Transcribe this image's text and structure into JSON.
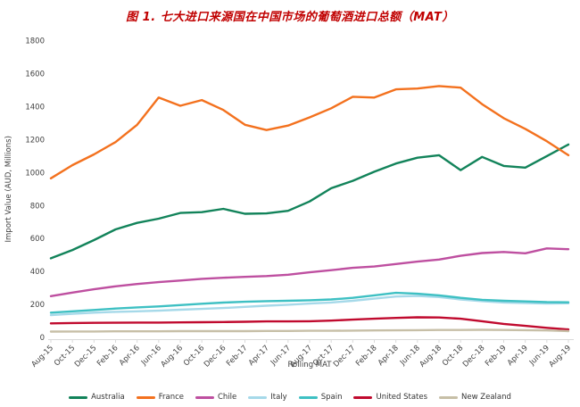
{
  "title": "图 1. 七大进口来源国在中国市场的葡萄酒进口总额（MAT）",
  "colors": {
    "title": "#C00000",
    "axis_text": "#404040",
    "axis_line": "#D9D9D9",
    "background": "#FFFFFF"
  },
  "chart_data": {
    "type": "line",
    "title": "图 1. 七大进口来源国在中国市场的葡萄酒进口总额（MAT）",
    "xlabel": "Rolling MAT",
    "ylabel": "Import Value (AUD, Millions)",
    "ylim": [
      0,
      1800
    ],
    "y_ticks": [
      0,
      200,
      400,
      600,
      800,
      1000,
      1200,
      1400,
      1600,
      1800
    ],
    "grid": false,
    "legend_position": "bottom",
    "x_labels": [
      "Aug-15",
      "Oct-15",
      "Dec-15",
      "Feb-16",
      "Apr-16",
      "Jun-16",
      "Aug-16",
      "Oct-16",
      "Dec-16",
      "Feb-17",
      "Apr-17",
      "Jun-17",
      "Aug-17",
      "Oct-17",
      "Dec-17",
      "Feb-18",
      "Apr-18",
      "Jun-18",
      "Aug-18",
      "Oct-18",
      "Dec-18",
      "Feb-19",
      "Apr-19",
      "Jun-19",
      "Aug-19"
    ],
    "series": [
      {
        "name": "Australia",
        "color": "#12835A",
        "values": [
          480,
          530,
          590,
          655,
          695,
          720,
          755,
          760,
          780,
          750,
          752,
          768,
          825,
          905,
          950,
          1005,
          1055,
          1090,
          1105,
          1015,
          1095,
          1040,
          1030,
          1100,
          1170
        ]
      },
      {
        "name": "France",
        "color": "#F3711E",
        "values": [
          965,
          1045,
          1110,
          1185,
          1290,
          1455,
          1405,
          1440,
          1380,
          1290,
          1258,
          1285,
          1335,
          1390,
          1460,
          1455,
          1505,
          1510,
          1525,
          1515,
          1415,
          1330,
          1265,
          1190,
          1105
        ]
      },
      {
        "name": "Chile",
        "color": "#BE4FA0",
        "values": [
          250,
          272,
          292,
          310,
          324,
          335,
          345,
          355,
          362,
          367,
          372,
          380,
          395,
          408,
          422,
          430,
          445,
          460,
          472,
          495,
          512,
          518,
          510,
          540,
          535
        ]
      },
      {
        "name": "Italy",
        "color": "#A6D9E9",
        "values": [
          135,
          143,
          150,
          155,
          158,
          162,
          168,
          173,
          178,
          185,
          192,
          198,
          205,
          212,
          222,
          235,
          248,
          252,
          245,
          230,
          220,
          212,
          208,
          205,
          207
        ]
      },
      {
        "name": "Spain",
        "color": "#3EC0C3",
        "values": [
          150,
          158,
          166,
          175,
          182,
          188,
          196,
          204,
          211,
          216,
          220,
          222,
          225,
          230,
          240,
          255,
          270,
          265,
          255,
          240,
          228,
          222,
          218,
          214,
          213
        ]
      },
      {
        "name": "United States",
        "color": "#C00A2E",
        "values": [
          85,
          87,
          88,
          89,
          90,
          90,
          91,
          92,
          93,
          95,
          97,
          97,
          98,
          102,
          108,
          113,
          118,
          122,
          121,
          113,
          98,
          82,
          70,
          58,
          48
        ]
      },
      {
        "name": "New Zealand",
        "color": "#C7BFA7",
        "values": [
          35,
          36,
          36,
          37,
          37,
          37,
          38,
          38,
          38,
          38,
          39,
          39,
          40,
          40,
          41,
          42,
          43,
          44,
          45,
          45,
          46,
          45,
          44,
          42,
          38
        ]
      }
    ]
  }
}
